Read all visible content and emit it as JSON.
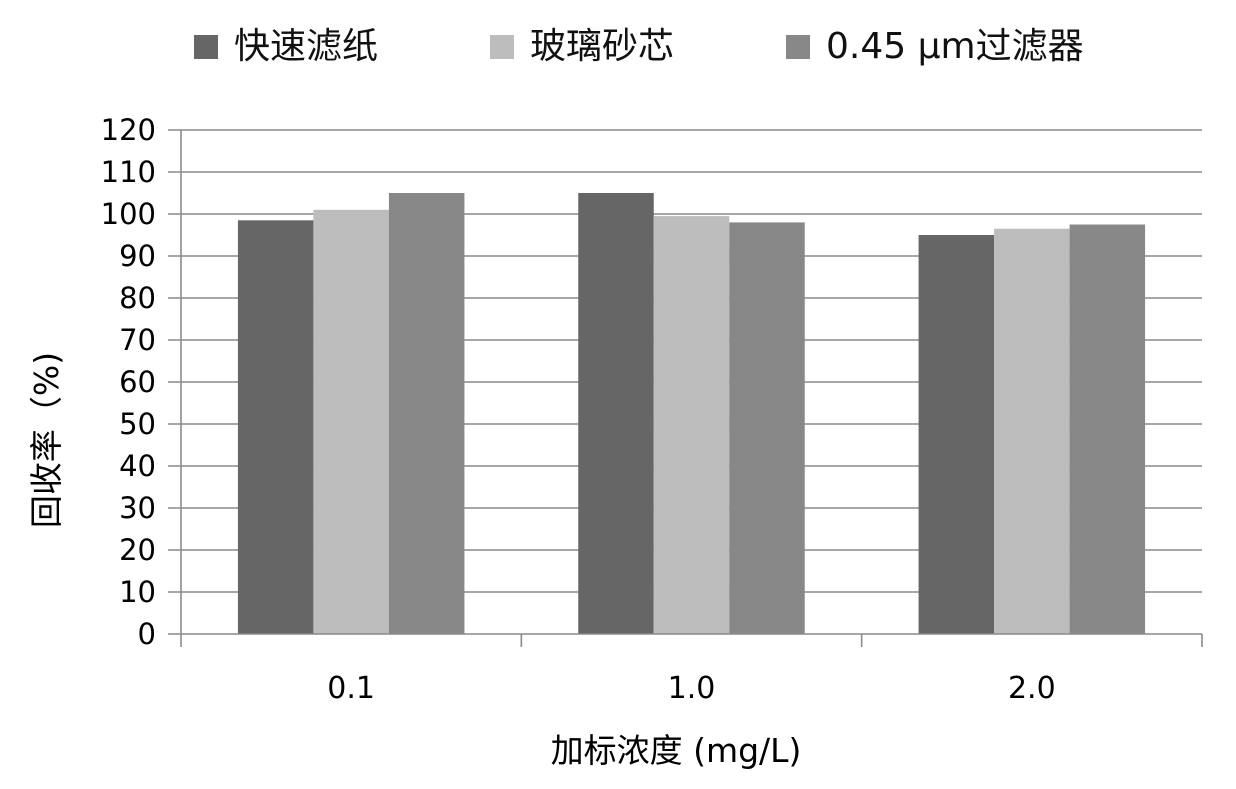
{
  "chart_data": {
    "type": "bar",
    "categories": [
      "0.1",
      "1.0",
      "2.0"
    ],
    "series": [
      {
        "name": "快速滤纸",
        "color": "#666666",
        "values": [
          98.5,
          105,
          95
        ]
      },
      {
        "name": "玻璃砂芯",
        "color": "#bdbdbd",
        "values": [
          101,
          99.5,
          96.5
        ]
      },
      {
        "name": "0.45 μm过滤器",
        "color": "#888888",
        "values": [
          105,
          98,
          97.5
        ]
      }
    ],
    "title": "",
    "xlabel": "加标浓度 (mg/L)",
    "ylabel": "回收率（%)",
    "ylim": [
      0,
      120
    ],
    "yticks": [
      "0",
      "10",
      "20",
      "30",
      "40",
      "50",
      "60",
      "70",
      "80",
      "90",
      "100",
      "110",
      "120"
    ],
    "grid": true,
    "legend": "top"
  }
}
